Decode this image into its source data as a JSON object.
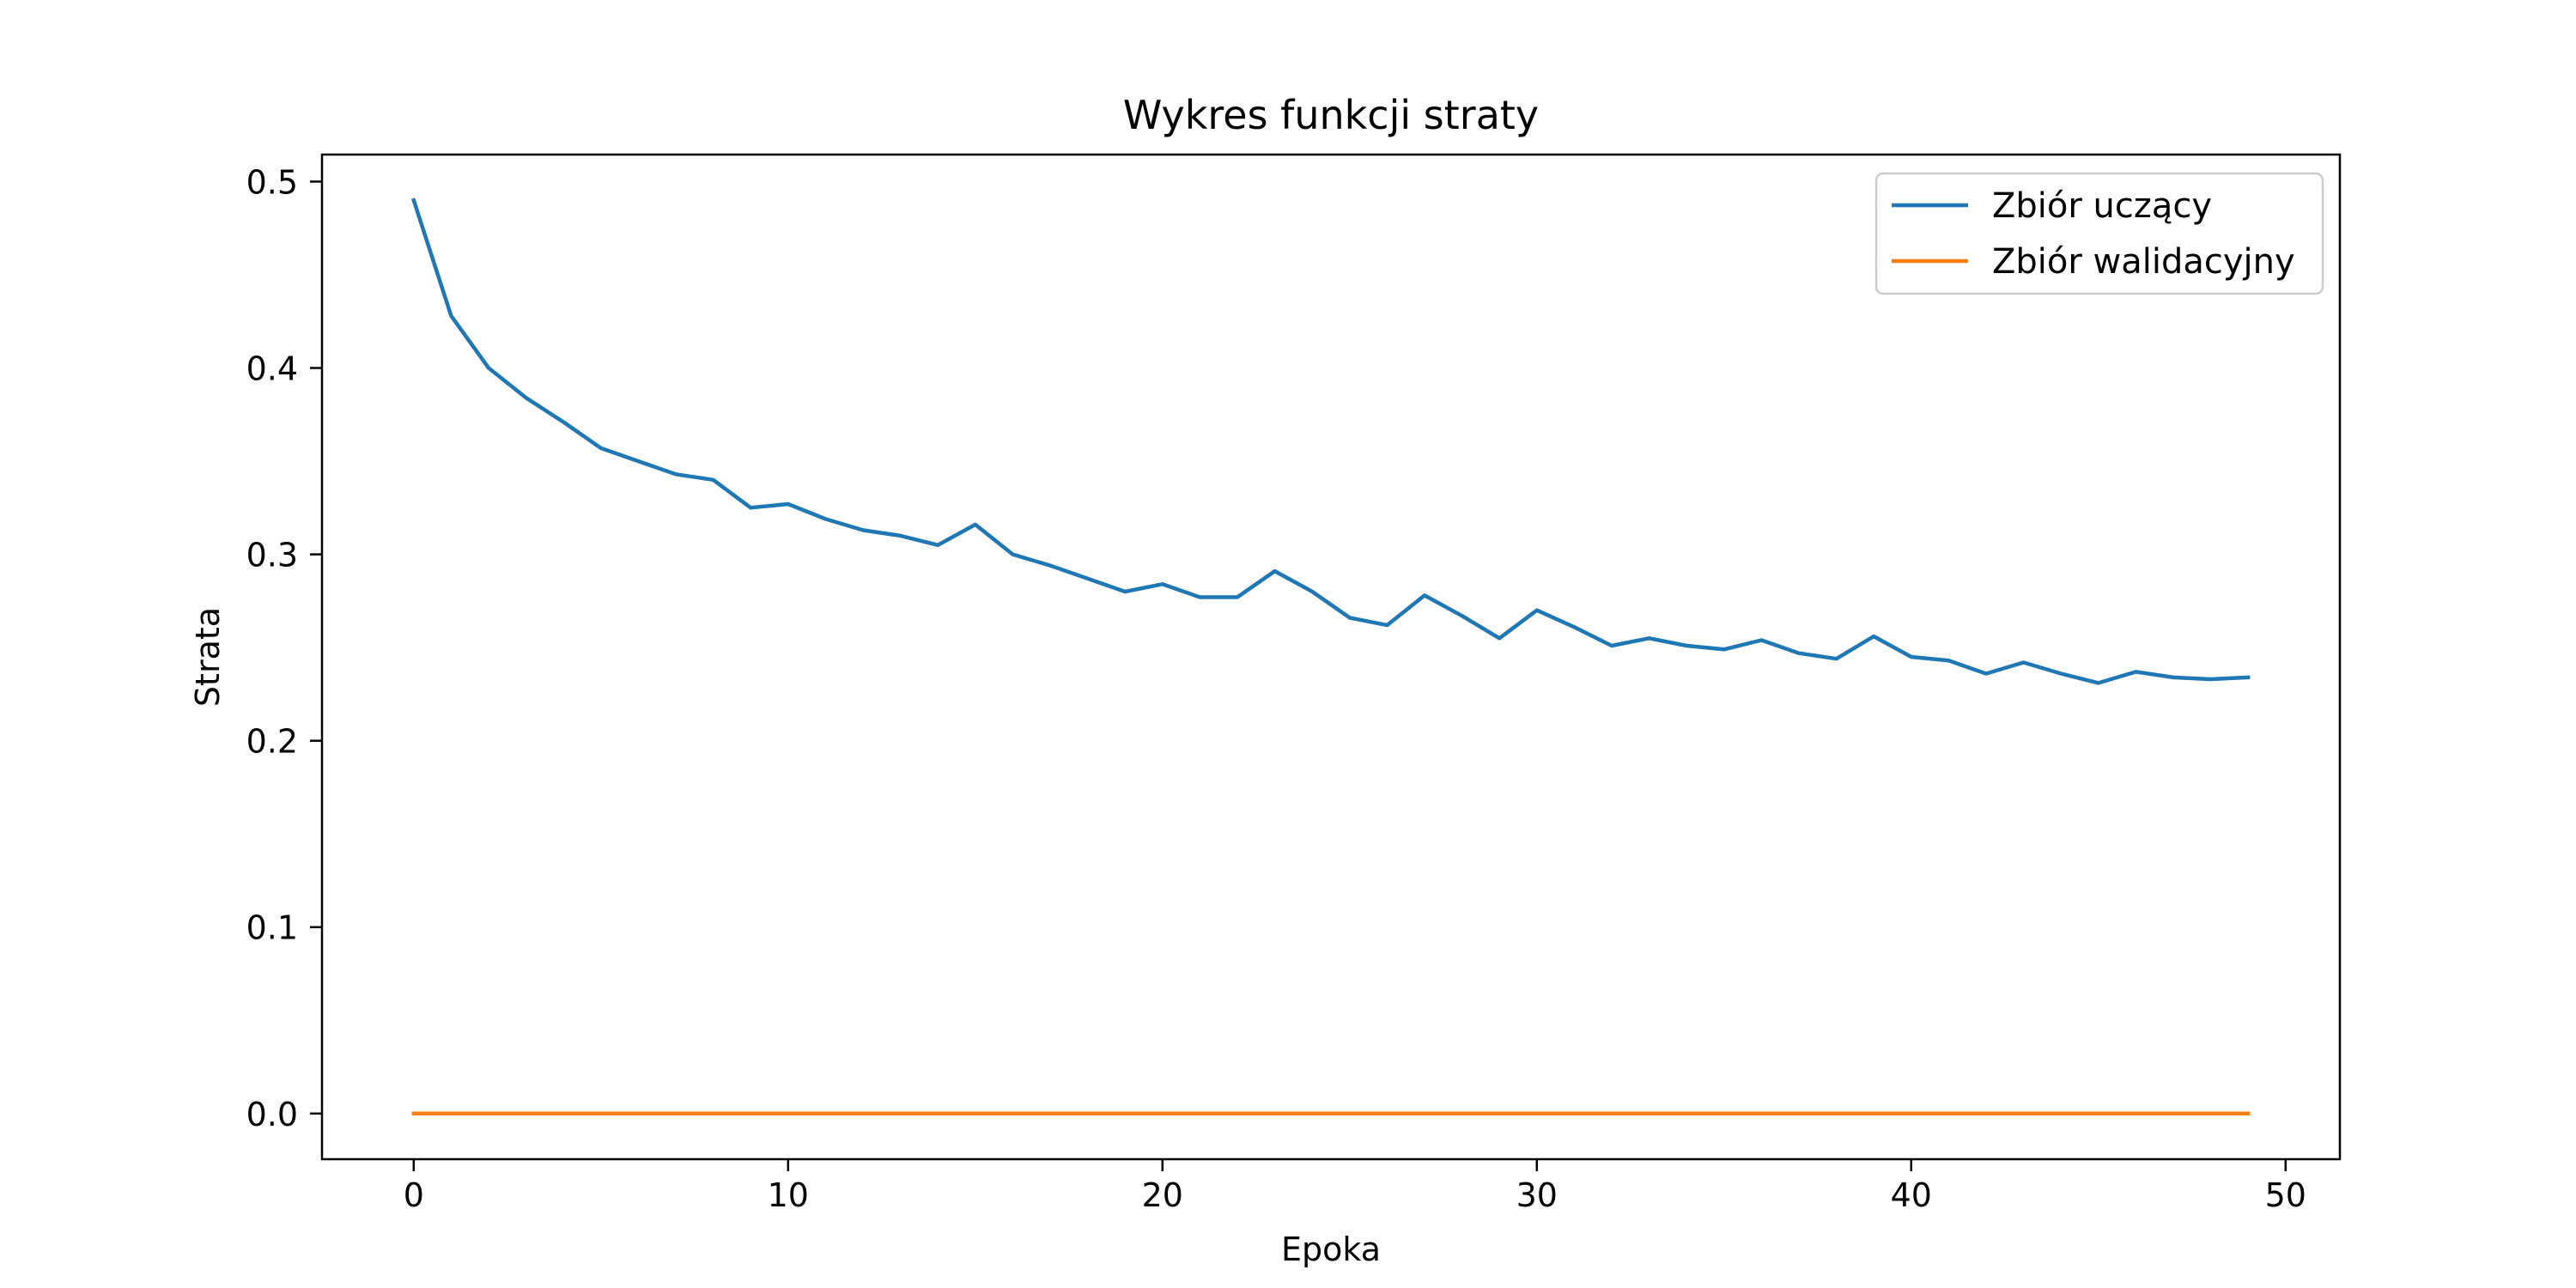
{
  "chart_data": {
    "type": "line",
    "title": "Wykres funkcji straty",
    "xlabel": "Epoka",
    "ylabel": "Strata",
    "xlim": [
      -2.45,
      51.45
    ],
    "ylim": [
      -0.0245,
      0.5145
    ],
    "xticks": [
      0,
      10,
      20,
      30,
      40,
      50
    ],
    "xtick_labels": [
      "0",
      "10",
      "20",
      "30",
      "40",
      "50"
    ],
    "yticks": [
      0.0,
      0.1,
      0.2,
      0.3,
      0.4,
      0.5
    ],
    "ytick_labels": [
      "0.0",
      "0.1",
      "0.2",
      "0.3",
      "0.4",
      "0.5"
    ],
    "grid": false,
    "legend_position": "top-right",
    "x": [
      0,
      1,
      2,
      3,
      4,
      5,
      6,
      7,
      8,
      9,
      10,
      11,
      12,
      13,
      14,
      15,
      16,
      17,
      18,
      19,
      20,
      21,
      22,
      23,
      24,
      25,
      26,
      27,
      28,
      29,
      30,
      31,
      32,
      33,
      34,
      35,
      36,
      37,
      38,
      39,
      40,
      41,
      42,
      43,
      44,
      45,
      46,
      47,
      48,
      49
    ],
    "series": [
      {
        "name": "Zbiór uczący",
        "color": "#1f77b4",
        "values": [
          0.49,
          0.428,
          0.4,
          0.384,
          0.371,
          0.357,
          0.35,
          0.343,
          0.34,
          0.325,
          0.327,
          0.319,
          0.313,
          0.31,
          0.305,
          0.316,
          0.3,
          0.294,
          0.287,
          0.28,
          0.284,
          0.277,
          0.277,
          0.291,
          0.28,
          0.266,
          0.262,
          0.278,
          0.267,
          0.255,
          0.27,
          0.261,
          0.251,
          0.255,
          0.251,
          0.249,
          0.254,
          0.247,
          0.244,
          0.256,
          0.245,
          0.243,
          0.236,
          0.242,
          0.236,
          0.231,
          0.237,
          0.234,
          0.233,
          0.234
        ]
      },
      {
        "name": "Zbiór walidacyjny",
        "color": "#ff7f0e",
        "values": [
          0,
          0,
          0,
          0,
          0,
          0,
          0,
          0,
          0,
          0,
          0,
          0,
          0,
          0,
          0,
          0,
          0,
          0,
          0,
          0,
          0,
          0,
          0,
          0,
          0,
          0,
          0,
          0,
          0,
          0,
          0,
          0,
          0,
          0,
          0,
          0,
          0,
          0,
          0,
          0,
          0,
          0,
          0,
          0,
          0,
          0,
          0,
          0,
          0,
          0
        ]
      }
    ]
  }
}
